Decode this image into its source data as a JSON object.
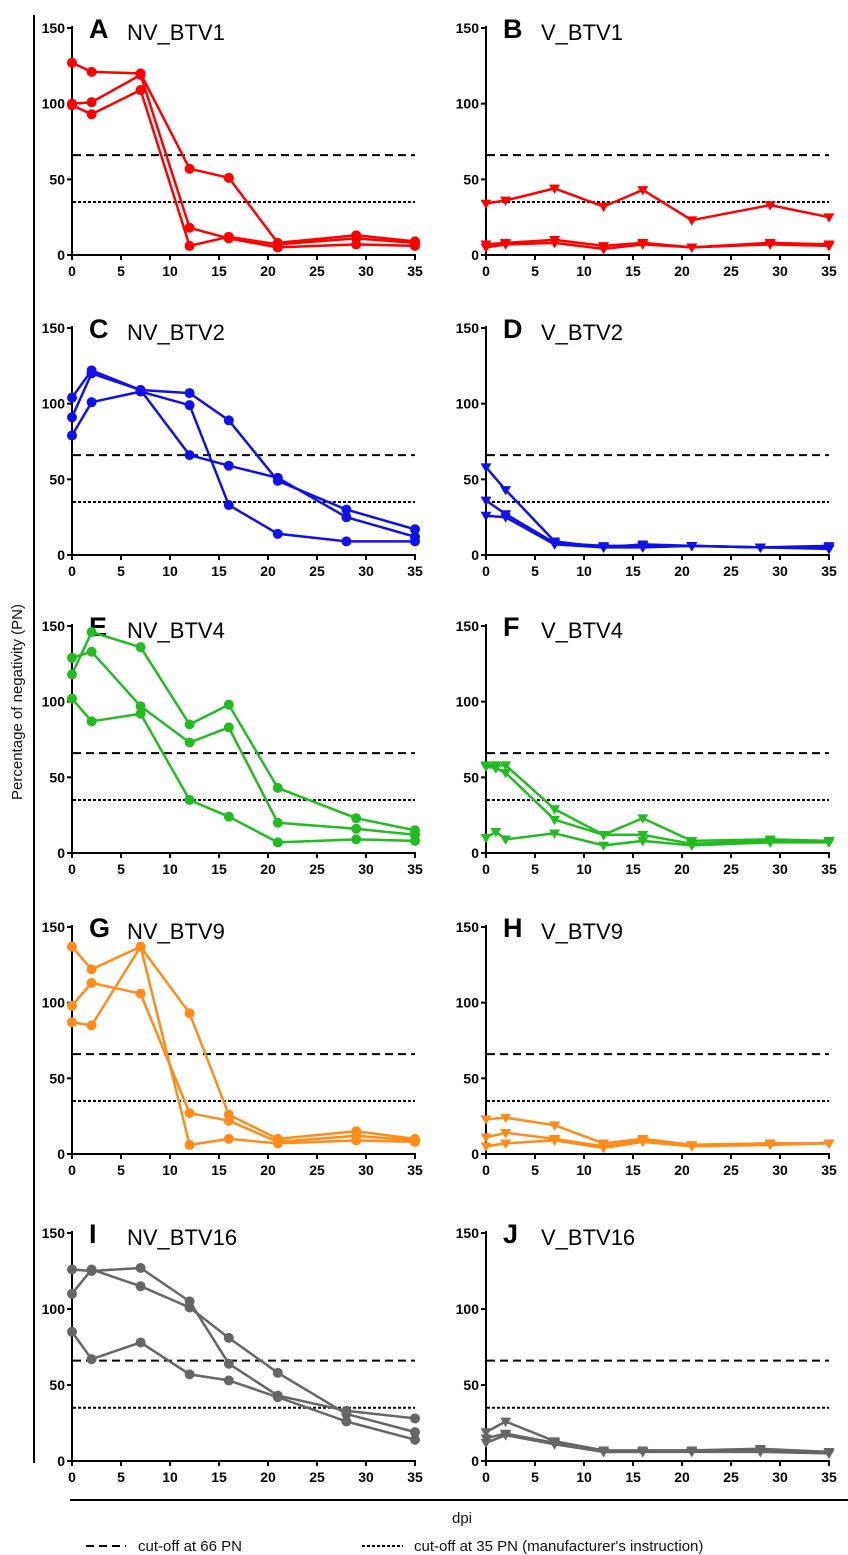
{
  "figure": {
    "ylabel": "Percentage of negativity (PN)",
    "xlabel": "dpi",
    "legend": [
      {
        "label": "cut-off at 66 PN",
        "style": "dashed"
      },
      {
        "label": "cut-off at 35 PN (manufacturer's instruction)",
        "style": "dotted"
      }
    ]
  },
  "chart_data": [
    {
      "type": "line",
      "letter": "A",
      "title": "NV_BTV1",
      "color": "#ff0000",
      "marker": "circle",
      "xlim": [
        0,
        35
      ],
      "ylim": [
        0,
        150
      ],
      "xticks": [
        0,
        5,
        10,
        15,
        20,
        25,
        30,
        35
      ],
      "yticks": [
        0,
        50,
        100,
        150
      ],
      "cutoffs": [
        66,
        35
      ],
      "series": [
        {
          "x": [
            0,
            2,
            7,
            12,
            16,
            21,
            29,
            35
          ],
          "y": [
            127,
            121,
            120,
            57,
            51,
            8,
            13,
            9
          ]
        },
        {
          "x": [
            0,
            2,
            7,
            12,
            16,
            21,
            29,
            35
          ],
          "y": [
            100,
            101,
            119,
            18,
            11,
            5,
            7,
            6
          ]
        },
        {
          "x": [
            0,
            2,
            7,
            12,
            16,
            21,
            29,
            35
          ],
          "y": [
            99,
            93,
            109,
            6,
            12,
            7,
            11,
            8
          ]
        }
      ]
    },
    {
      "type": "line",
      "letter": "B",
      "title": "V_BTV1",
      "color": "#ff0000",
      "marker": "triangle",
      "xlim": [
        0,
        35
      ],
      "ylim": [
        0,
        150
      ],
      "xticks": [
        0,
        5,
        10,
        15,
        20,
        25,
        30,
        35
      ],
      "yticks": [
        0,
        50,
        100,
        150
      ],
      "cutoffs": [
        66,
        35
      ],
      "series": [
        {
          "x": [
            0,
            2,
            7,
            12,
            16,
            21,
            29,
            35
          ],
          "y": [
            34,
            36,
            44,
            32,
            43,
            23,
            33,
            25
          ]
        },
        {
          "x": [
            0,
            2,
            7,
            12,
            16,
            21,
            29,
            35
          ],
          "y": [
            7,
            8,
            10,
            6,
            8,
            5,
            8,
            7
          ]
        },
        {
          "x": [
            0,
            2,
            7,
            12,
            16,
            21,
            29,
            35
          ],
          "y": [
            5,
            7,
            8,
            4,
            7,
            5,
            7,
            6
          ]
        }
      ]
    },
    {
      "type": "line",
      "letter": "C",
      "title": "NV_BTV2",
      "color": "#1010e8",
      "marker": "circle",
      "xlim": [
        0,
        35
      ],
      "ylim": [
        0,
        150
      ],
      "xticks": [
        0,
        5,
        10,
        15,
        20,
        25,
        30,
        35
      ],
      "yticks": [
        0,
        50,
        100,
        150
      ],
      "cutoffs": [
        66,
        35
      ],
      "series": [
        {
          "x": [
            0,
            2,
            7,
            12,
            16,
            21,
            28,
            35
          ],
          "y": [
            104,
            122,
            109,
            107,
            89,
            49,
            30,
            17
          ]
        },
        {
          "x": [
            0,
            2,
            7,
            12,
            16,
            21,
            28,
            35
          ],
          "y": [
            91,
            120,
            109,
            66,
            59,
            51,
            25,
            12
          ]
        },
        {
          "x": [
            0,
            2,
            7,
            12,
            16,
            21,
            28,
            35
          ],
          "y": [
            79,
            101,
            108,
            99,
            33,
            14,
            9,
            9
          ]
        }
      ]
    },
    {
      "type": "line",
      "letter": "D",
      "title": "V_BTV2",
      "color": "#1010e8",
      "marker": "triangle",
      "xlim": [
        0,
        35
      ],
      "ylim": [
        0,
        150
      ],
      "xticks": [
        0,
        5,
        10,
        15,
        20,
        25,
        30,
        35
      ],
      "yticks": [
        0,
        50,
        100,
        150
      ],
      "cutoffs": [
        66,
        35
      ],
      "series": [
        {
          "x": [
            0,
            2,
            7,
            12,
            16,
            21,
            28,
            35
          ],
          "y": [
            58,
            43,
            9,
            5,
            7,
            6,
            5,
            6
          ]
        },
        {
          "x": [
            0,
            2,
            7,
            12,
            16,
            21,
            28,
            35
          ],
          "y": [
            36,
            27,
            8,
            6,
            6,
            6,
            5,
            5
          ]
        },
        {
          "x": [
            0,
            2,
            7,
            12,
            16,
            21,
            28,
            35
          ],
          "y": [
            26,
            25,
            7,
            5,
            5,
            6,
            5,
            4
          ]
        }
      ]
    },
    {
      "type": "line",
      "letter": "E",
      "title": "NV_BTV4",
      "color": "#22bb22",
      "marker": "circle",
      "xlim": [
        0,
        35
      ],
      "ylim": [
        0,
        150
      ],
      "xticks": [
        0,
        5,
        10,
        15,
        20,
        25,
        30,
        35
      ],
      "yticks": [
        0,
        50,
        100,
        150
      ],
      "cutoffs": [
        66,
        35
      ],
      "series": [
        {
          "x": [
            0,
            2,
            7,
            12,
            16,
            21,
            29,
            35
          ],
          "y": [
            118,
            146,
            136,
            85,
            98,
            43,
            23,
            15
          ]
        },
        {
          "x": [
            0,
            2,
            7,
            12,
            16,
            21,
            29,
            35
          ],
          "y": [
            129,
            133,
            97,
            73,
            83,
            20,
            16,
            12
          ]
        },
        {
          "x": [
            0,
            2,
            7,
            12,
            16,
            21,
            29,
            35
          ],
          "y": [
            102,
            87,
            92,
            35,
            24,
            7,
            9,
            8
          ]
        }
      ]
    },
    {
      "type": "line",
      "letter": "F",
      "title": "V_BTV4",
      "color": "#22bb22",
      "marker": "triangle",
      "xlim": [
        0,
        35
      ],
      "ylim": [
        0,
        150
      ],
      "xticks": [
        0,
        5,
        10,
        15,
        20,
        25,
        30,
        35
      ],
      "yticks": [
        0,
        50,
        100,
        150
      ],
      "cutoffs": [
        66,
        35
      ],
      "series": [
        {
          "x": [
            0,
            1,
            2,
            7,
            12,
            16,
            21,
            29,
            35
          ],
          "y": [
            58,
            58,
            58,
            29,
            12,
            23,
            8,
            9,
            8
          ]
        },
        {
          "x": [
            0,
            1,
            2,
            7,
            12,
            16,
            21,
            29,
            35
          ],
          "y": [
            57,
            56,
            53,
            22,
            12,
            12,
            6,
            8,
            7
          ]
        },
        {
          "x": [
            0,
            1,
            2,
            7,
            12,
            16,
            21,
            29,
            35
          ],
          "y": [
            10,
            14,
            9,
            13,
            5,
            8,
            5,
            7,
            7
          ]
        }
      ]
    },
    {
      "type": "line",
      "letter": "G",
      "title": "NV_BTV9",
      "color": "#ff8c1a",
      "marker": "circle",
      "xlim": [
        0,
        35
      ],
      "ylim": [
        0,
        150
      ],
      "xticks": [
        0,
        5,
        10,
        15,
        20,
        25,
        30,
        35
      ],
      "yticks": [
        0,
        50,
        100,
        150
      ],
      "cutoffs": [
        66,
        35
      ],
      "series": [
        {
          "x": [
            0,
            2,
            7,
            12,
            16,
            21,
            29,
            35
          ],
          "y": [
            137,
            122,
            137,
            93,
            26,
            10,
            15,
            10
          ]
        },
        {
          "x": [
            0,
            2,
            7,
            12,
            16,
            21,
            29,
            35
          ],
          "y": [
            98,
            113,
            106,
            27,
            22,
            8,
            12,
            9
          ]
        },
        {
          "x": [
            0,
            2,
            7,
            12,
            16,
            21,
            29,
            35
          ],
          "y": [
            87,
            85,
            137,
            6,
            10,
            7,
            9,
            8
          ]
        }
      ]
    },
    {
      "type": "line",
      "letter": "H",
      "title": "V_BTV9",
      "color": "#ff8c1a",
      "marker": "triangle",
      "xlim": [
        0,
        35
      ],
      "ylim": [
        0,
        150
      ],
      "xticks": [
        0,
        5,
        10,
        15,
        20,
        25,
        30,
        35
      ],
      "yticks": [
        0,
        50,
        100,
        150
      ],
      "cutoffs": [
        66,
        35
      ],
      "series": [
        {
          "x": [
            0,
            2,
            7,
            12,
            16,
            21,
            29,
            35
          ],
          "y": [
            23,
            24,
            19,
            7,
            10,
            6,
            7,
            7
          ]
        },
        {
          "x": [
            0,
            2,
            7,
            12,
            16,
            21,
            29,
            35
          ],
          "y": [
            11,
            14,
            10,
            5,
            9,
            6,
            7,
            7
          ]
        },
        {
          "x": [
            0,
            2,
            7,
            12,
            16,
            21,
            29,
            35
          ],
          "y": [
            5,
            7,
            9,
            4,
            8,
            5,
            6,
            7
          ]
        }
      ]
    },
    {
      "type": "line",
      "letter": "I",
      "title": "NV_BTV16",
      "color": "#666666",
      "marker": "circle",
      "xlim": [
        0,
        35
      ],
      "ylim": [
        0,
        150
      ],
      "xticks": [
        0,
        5,
        10,
        15,
        20,
        25,
        30,
        35
      ],
      "yticks": [
        0,
        50,
        100,
        150
      ],
      "cutoffs": [
        66,
        35
      ],
      "series": [
        {
          "x": [
            0,
            2,
            7,
            12,
            16,
            21,
            28,
            35
          ],
          "y": [
            126,
            125,
            127,
            105,
            64,
            43,
            33,
            28
          ]
        },
        {
          "x": [
            0,
            2,
            7,
            12,
            16,
            21,
            28,
            35
          ],
          "y": [
            110,
            126,
            115,
            101,
            81,
            58,
            31,
            19
          ]
        },
        {
          "x": [
            0,
            2,
            7,
            12,
            16,
            21,
            28,
            35
          ],
          "y": [
            85,
            67,
            78,
            57,
            53,
            42,
            26,
            14
          ]
        }
      ]
    },
    {
      "type": "line",
      "letter": "J",
      "title": "V_BTV16",
      "color": "#666666",
      "marker": "triangle",
      "xlim": [
        0,
        35
      ],
      "ylim": [
        0,
        150
      ],
      "xticks": [
        0,
        5,
        10,
        15,
        20,
        25,
        30,
        35
      ],
      "yticks": [
        0,
        50,
        100,
        150
      ],
      "cutoffs": [
        66,
        35
      ],
      "series": [
        {
          "x": [
            0,
            2,
            7,
            12,
            16,
            21,
            28,
            35
          ],
          "y": [
            19,
            26,
            13,
            7,
            7,
            7,
            8,
            6
          ]
        },
        {
          "x": [
            0,
            2,
            7,
            12,
            16,
            21,
            28,
            35
          ],
          "y": [
            15,
            18,
            12,
            6,
            6,
            7,
            7,
            5
          ]
        },
        {
          "x": [
            0,
            2,
            7,
            12,
            16,
            21,
            28,
            35
          ],
          "y": [
            12,
            17,
            11,
            6,
            6,
            6,
            6,
            5
          ]
        }
      ]
    }
  ]
}
